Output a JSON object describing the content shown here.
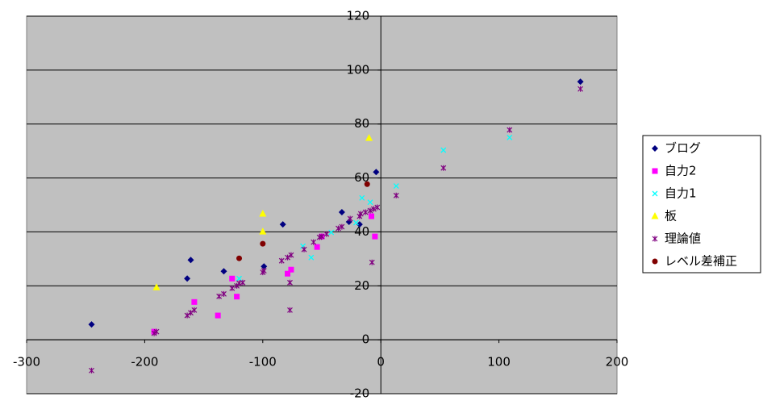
{
  "chart_data": {
    "type": "scatter",
    "xlim": [
      -300,
      200
    ],
    "xticks": [
      -300,
      -200,
      -100,
      0,
      100,
      200
    ],
    "ylim": [
      -20,
      120
    ],
    "yticks": [
      -20,
      0,
      20,
      40,
      60,
      80,
      100,
      120
    ],
    "grid": true,
    "legend": "right",
    "series": [
      {
        "name": "ブログ",
        "color": "#000080",
        "marker": "diamond",
        "x": [
          -245,
          -161,
          -164,
          -133,
          -99,
          -83,
          -33,
          -27,
          -18,
          -4,
          169
        ],
        "values": [
          5.7,
          29.6,
          22.7,
          25.4,
          27.2,
          42.8,
          47.3,
          43.7,
          42.8,
          62.2,
          95.7
        ]
      },
      {
        "name": "自力2",
        "color": "#ff00ff",
        "marker": "square",
        "x": [
          -192,
          -158,
          -138,
          -126,
          -122,
          -79,
          -76,
          -54,
          -50,
          -8,
          -5
        ],
        "values": [
          3,
          14,
          9,
          22.7,
          16,
          24.5,
          26,
          34.4,
          38.3,
          45.8,
          38.3
        ]
      },
      {
        "name": "自力1",
        "color": "#00ffff",
        "marker": "x",
        "x": [
          53,
          109,
          13,
          -16,
          -59,
          -66,
          -120,
          -9,
          -21,
          -42
        ],
        "values": [
          70.3,
          75,
          57,
          52.6,
          30.5,
          34.7,
          22.7,
          51,
          43.4,
          39.8
        ]
      },
      {
        "name": "板",
        "color": "#ffff00",
        "marker": "triangle",
        "x": [
          -190,
          -100,
          -100,
          -10
        ],
        "values": [
          19.4,
          46.7,
          40.1,
          74.8
        ]
      },
      {
        "name": "理論値",
        "color": "#800080",
        "marker": "star",
        "x": [
          -245,
          -192,
          -190,
          -164,
          -161,
          -158,
          -137,
          -133,
          -126,
          -122,
          -120,
          -117,
          -100,
          -99,
          -84,
          -79,
          -76,
          -77,
          -77,
          -65,
          -57,
          -52,
          -50,
          -46,
          -36,
          -33,
          -26,
          -18,
          -17,
          -13,
          -9,
          -6,
          -3,
          -7.5,
          13,
          53,
          109,
          169
        ],
        "values": [
          -11.4,
          2.4,
          3,
          9,
          10,
          11,
          16.1,
          17,
          19.1,
          20,
          21,
          21.2,
          25,
          25.6,
          29.3,
          30.5,
          31.4,
          21.2,
          11,
          33.5,
          36.2,
          38,
          38.3,
          39.2,
          41.3,
          41.9,
          44.9,
          45.8,
          46.7,
          47.3,
          47.9,
          48.5,
          49.1,
          28.7,
          53.5,
          63.7,
          77.8,
          93
        ]
      },
      {
        "name": "レベル差補正",
        "color": "#800000",
        "marker": "circle",
        "x": [
          -120,
          -100,
          -11.6
        ],
        "values": [
          30.2,
          35.6,
          57.7
        ]
      }
    ]
  }
}
